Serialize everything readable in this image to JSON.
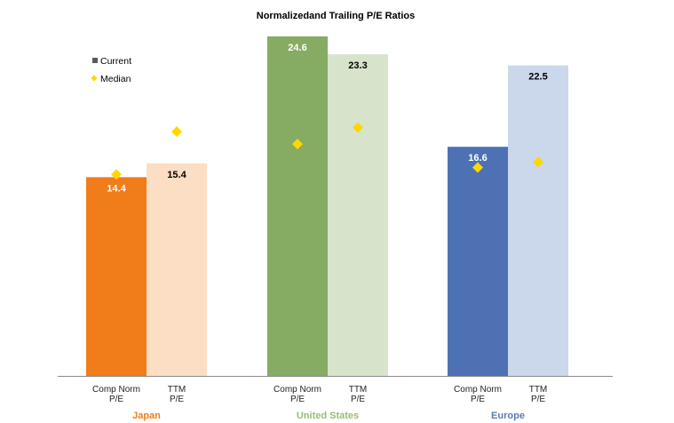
{
  "chart_data": {
    "type": "bar",
    "title": "Normalizedand Trailing P/E Ratios",
    "ylim": [
      0,
      26
    ],
    "legend": {
      "position": "top-left",
      "current_label": "Current",
      "median_label": "Median",
      "current_color": "#595959",
      "median_color": "#FFD700"
    },
    "groups": [
      {
        "name": "Japan",
        "name_color": "#F07C1A",
        "bars": [
          {
            "label_line1": "Comp Norm",
            "label_line2": "P/E",
            "current": 14.4,
            "median": 14.6,
            "color": "#F07C1A",
            "label_color": "#FFFFFF"
          },
          {
            "label_line1": "TTM",
            "label_line2": "P/E",
            "current": 15.4,
            "median": 17.7,
            "color": "#FBDEC4",
            "label_color": "#000000"
          }
        ]
      },
      {
        "name": "United States",
        "name_color": "#97BD75",
        "bars": [
          {
            "label_line1": "Comp Norm",
            "label_line2": "P/E",
            "current": 24.6,
            "median": 16.8,
            "color": "#86AB63",
            "label_color": "#FFFFFF"
          },
          {
            "label_line1": "TTM",
            "label_line2": "P/E",
            "current": 23.3,
            "median": 18.0,
            "color": "#D7E4CB",
            "label_color": "#000000"
          }
        ]
      },
      {
        "name": "Europe",
        "name_color": "#5B7BB6",
        "bars": [
          {
            "label_line1": "Comp Norm",
            "label_line2": "P/E",
            "current": 16.6,
            "median": 15.1,
            "color": "#4D71B3",
            "label_color": "#FFFFFF"
          },
          {
            "label_line1": "TTM",
            "label_line2": "P/E",
            "current": 22.5,
            "median": 15.5,
            "color": "#CBD7EA",
            "label_color": "#000000"
          }
        ]
      }
    ]
  }
}
